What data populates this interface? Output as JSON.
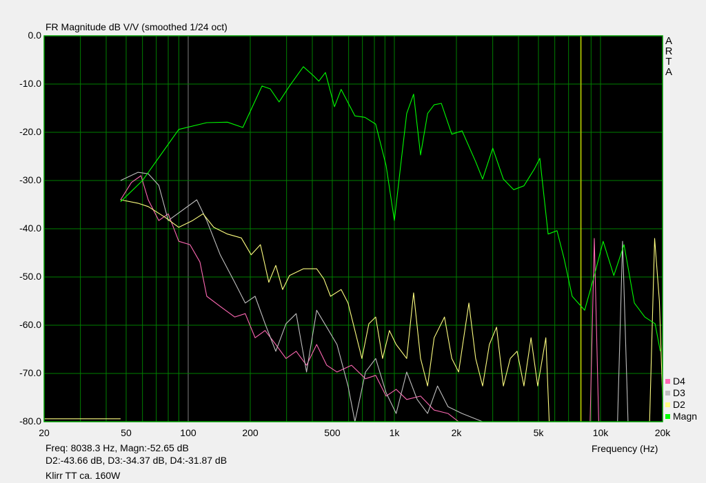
{
  "chart_data": {
    "type": "line",
    "title": "FR Magnitude dB V/V (smoothed 1/24 oct)",
    "xlabel": "Frequency (Hz)",
    "ylabel": "",
    "x_scale": "log",
    "xlim": [
      20,
      20000
    ],
    "ylim": [
      -80,
      0
    ],
    "x_ticks": [
      20,
      50,
      100,
      200,
      500,
      1000,
      2000,
      5000,
      10000,
      20000
    ],
    "x_tick_labels": [
      "20",
      "50",
      "100",
      "200",
      "500",
      "1k",
      "2k",
      "5k",
      "10k",
      "20k"
    ],
    "y_ticks": [
      0,
      -10,
      -20,
      -30,
      -40,
      -50,
      -60,
      -70,
      -80
    ],
    "y_tick_labels": [
      "0.0",
      "-10.0",
      "-20.0",
      "-30.0",
      "-40.0",
      "-50.0",
      "-60.0",
      "-70.0",
      "-80.0"
    ],
    "grid": true,
    "legend_placement": "bottom-right",
    "background": "#000000",
    "grid_color": "#008000",
    "cursor": {
      "freq": 8038.3,
      "color": "#c8c800"
    },
    "series": [
      {
        "name": "Magn",
        "color": "#00ff00",
        "points": [
          [
            47,
            -34.4
          ],
          [
            60,
            -30
          ],
          [
            90,
            -19.4
          ],
          [
            123,
            -18
          ],
          [
            155,
            -17.9
          ],
          [
            184,
            -19
          ],
          [
            228,
            -10.4
          ],
          [
            250,
            -11
          ],
          [
            276,
            -13.7
          ],
          [
            310,
            -10.4
          ],
          [
            362,
            -6.4
          ],
          [
            406,
            -8.3
          ],
          [
            430,
            -9.4
          ],
          [
            463,
            -7.6
          ],
          [
            512,
            -14.7
          ],
          [
            552,
            -11.1
          ],
          [
            644,
            -16.6
          ],
          [
            720,
            -16.9
          ],
          [
            812,
            -18.3
          ],
          [
            912,
            -26.9
          ],
          [
            1000,
            -38.3
          ],
          [
            1064,
            -28.3
          ],
          [
            1148,
            -16.1
          ],
          [
            1240,
            -12.1
          ],
          [
            1340,
            -24.7
          ],
          [
            1450,
            -16.1
          ],
          [
            1560,
            -14.3
          ],
          [
            1690,
            -14
          ],
          [
            1900,
            -20.4
          ],
          [
            2130,
            -19.7
          ],
          [
            2480,
            -26.1
          ],
          [
            2680,
            -29.7
          ],
          [
            3000,
            -23.3
          ],
          [
            3380,
            -29.7
          ],
          [
            3790,
            -31.9
          ],
          [
            4250,
            -31.1
          ],
          [
            4780,
            -27.6
          ],
          [
            5080,
            -25.4
          ],
          [
            5570,
            -41.1
          ],
          [
            6150,
            -40.4
          ],
          [
            6650,
            -46.1
          ],
          [
            7290,
            -54
          ],
          [
            8380,
            -56.9
          ],
          [
            9330,
            -49.7
          ],
          [
            10300,
            -42.6
          ],
          [
            11600,
            -49.7
          ],
          [
            13000,
            -43.3
          ],
          [
            14600,
            -55.4
          ],
          [
            16400,
            -58.3
          ],
          [
            18400,
            -59.7
          ],
          [
            19500,
            -65.4
          ]
        ]
      },
      {
        "name": "D2",
        "color": "#ffff80",
        "points": [
          [
            20,
            -79.4
          ],
          [
            47,
            -79.4
          ],
          null,
          [
            47,
            -34
          ],
          [
            57,
            -34.7
          ],
          [
            64,
            -35.4
          ],
          [
            77,
            -37.6
          ],
          [
            90,
            -39.7
          ],
          [
            105,
            -38.3
          ],
          [
            118,
            -36.9
          ],
          [
            133,
            -39.7
          ],
          [
            155,
            -41.1
          ],
          [
            181,
            -41.9
          ],
          [
            202,
            -45.4
          ],
          [
            224,
            -43.3
          ],
          [
            246,
            -51.1
          ],
          [
            266,
            -47.6
          ],
          [
            287,
            -52.6
          ],
          [
            310,
            -49.7
          ],
          [
            362,
            -48.3
          ],
          [
            420,
            -48.3
          ],
          [
            455,
            -50.4
          ],
          [
            490,
            -54
          ],
          [
            552,
            -52.6
          ],
          [
            596,
            -55.4
          ],
          [
            644,
            -61.1
          ],
          [
            696,
            -66.9
          ],
          [
            752,
            -59.7
          ],
          [
            812,
            -58.3
          ],
          [
            877,
            -66.9
          ],
          [
            946,
            -61.1
          ],
          [
            1020,
            -64
          ],
          [
            1148,
            -66.9
          ],
          [
            1240,
            -53.3
          ],
          [
            1340,
            -66.9
          ],
          [
            1450,
            -72.6
          ],
          [
            1560,
            -62.6
          ],
          [
            1750,
            -58.3
          ],
          [
            1900,
            -66.9
          ],
          [
            2050,
            -69.7
          ],
          [
            2300,
            -55.4
          ],
          [
            2480,
            -66.9
          ],
          [
            2680,
            -72.6
          ],
          [
            2890,
            -64
          ],
          [
            3130,
            -60.4
          ],
          [
            3380,
            -72.6
          ],
          [
            3650,
            -66.9
          ],
          [
            3940,
            -65.4
          ],
          [
            4250,
            -72.6
          ],
          [
            4600,
            -62.6
          ],
          [
            4960,
            -72.6
          ],
          [
            5430,
            -62.6
          ],
          [
            5640,
            -80
          ],
          null,
          [
            17300,
            -80
          ],
          [
            18300,
            -42
          ],
          [
            19300,
            -55
          ],
          [
            20000,
            -75
          ]
        ]
      },
      {
        "name": "D3",
        "color": "#c0c0c0",
        "points": [
          [
            47,
            -30
          ],
          [
            57,
            -28.3
          ],
          [
            64,
            -28.6
          ],
          [
            72,
            -31
          ],
          [
            80,
            -38.3
          ],
          [
            110,
            -34
          ],
          [
            123,
            -38.3
          ],
          [
            143,
            -45.4
          ],
          [
            168,
            -51.1
          ],
          [
            189,
            -55.4
          ],
          [
            211,
            -54
          ],
          [
            236,
            -59.7
          ],
          [
            266,
            -65.4
          ],
          [
            298,
            -59.7
          ],
          [
            334,
            -57.6
          ],
          [
            375,
            -69.7
          ],
          [
            420,
            -56.9
          ],
          [
            470,
            -60.4
          ],
          [
            527,
            -64
          ],
          [
            596,
            -72.6
          ],
          [
            644,
            -80
          ],
          [
            724,
            -69.7
          ],
          [
            812,
            -66.9
          ],
          [
            912,
            -74
          ],
          [
            1020,
            -78.3
          ],
          [
            1148,
            -69.7
          ],
          [
            1290,
            -75.4
          ],
          [
            1450,
            -78.3
          ],
          [
            1620,
            -72.6
          ],
          [
            1820,
            -76.9
          ],
          [
            2130,
            -78.3
          ],
          [
            2680,
            -80
          ],
          null,
          [
            12100,
            -80
          ],
          [
            12800,
            -42.6
          ],
          [
            13600,
            -80
          ]
        ]
      },
      {
        "name": "D4",
        "color": "#ff69b4",
        "points": [
          [
            47,
            -34
          ],
          [
            53,
            -30.4
          ],
          [
            59,
            -29
          ],
          [
            64,
            -34
          ],
          [
            72,
            -38.3
          ],
          [
            80,
            -36.9
          ],
          [
            90,
            -42.6
          ],
          [
            102,
            -43.3
          ],
          [
            114,
            -46.9
          ],
          [
            123,
            -54
          ],
          [
            143,
            -56.1
          ],
          [
            168,
            -58.3
          ],
          [
            189,
            -57.6
          ],
          [
            211,
            -62.6
          ],
          [
            236,
            -61.1
          ],
          [
            266,
            -64
          ],
          [
            298,
            -66.9
          ],
          [
            334,
            -65.4
          ],
          [
            375,
            -68.3
          ],
          [
            420,
            -64
          ],
          [
            470,
            -68.3
          ],
          [
            527,
            -69.7
          ],
          [
            620,
            -68.3
          ],
          [
            724,
            -71.1
          ],
          [
            812,
            -70.4
          ],
          [
            912,
            -74.7
          ],
          [
            1020,
            -73.3
          ],
          [
            1148,
            -75.4
          ],
          [
            1340,
            -74.7
          ],
          [
            1560,
            -77.6
          ],
          [
            1820,
            -78.3
          ],
          [
            2050,
            -80
          ],
          null,
          [
            8900,
            -80
          ],
          [
            9330,
            -42
          ],
          [
            9800,
            -80
          ]
        ]
      }
    ],
    "legend": [
      {
        "name": "D4",
        "color": "#ff69b4"
      },
      {
        "name": "D3",
        "color": "#c0c0c0"
      },
      {
        "name": "D2",
        "color": "#ffff80"
      },
      {
        "name": "Magn",
        "color": "#00ff00"
      }
    ]
  },
  "readout": {
    "line1": "Freq: 8038.3 Hz, Magn:-52.65 dB",
    "line2": "D2:-43.66 dB, D3:-34.37 dB, D4:-31.87 dB"
  },
  "note": "Klirr TT ca. 160W",
  "brand": "ARTA"
}
